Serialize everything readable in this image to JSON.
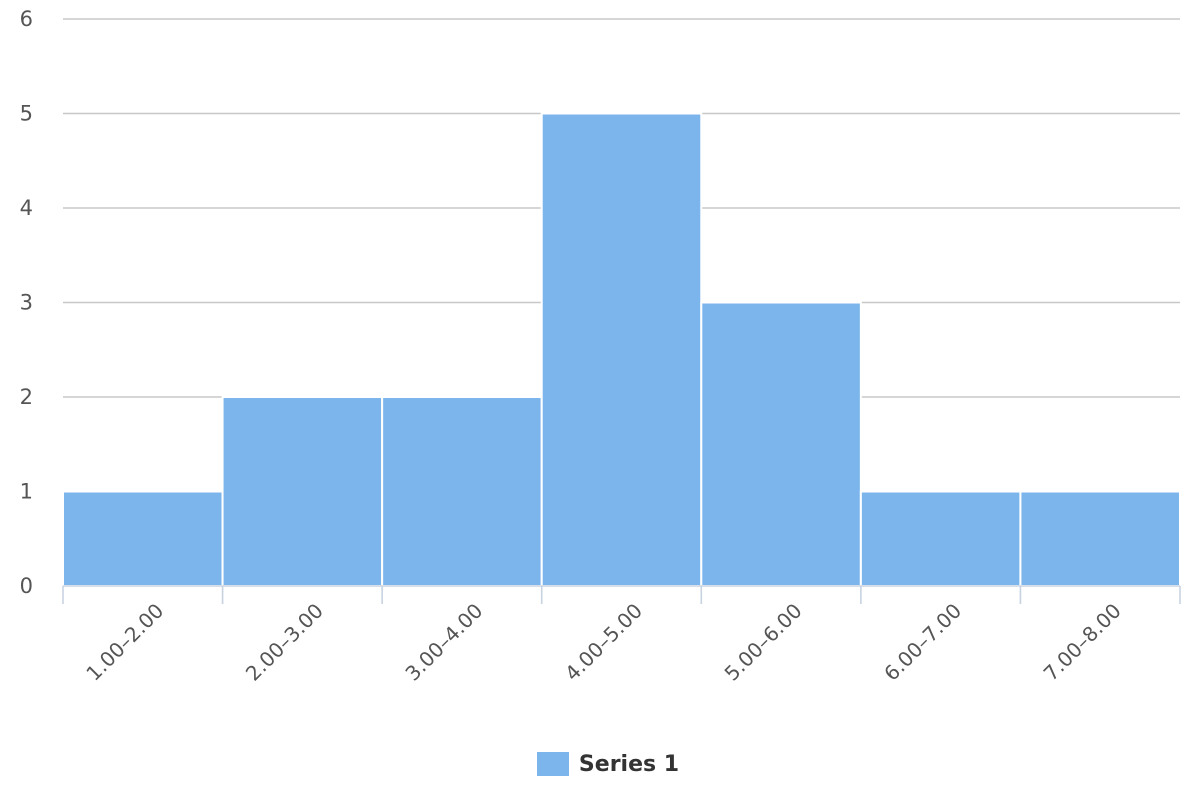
{
  "chart_data": {
    "type": "bar",
    "categories": [
      "1.00–2.00",
      "2.00–3.00",
      "3.00–4.00",
      "4.00–5.00",
      "5.00–6.00",
      "6.00–7.00",
      "7.00–8.00"
    ],
    "series": [
      {
        "name": "Series 1",
        "values": [
          1,
          2,
          2,
          5,
          3,
          1,
          1
        ],
        "color": "#7cb5ec"
      }
    ],
    "ylim": [
      0,
      6
    ],
    "yticks": [
      0,
      1,
      2,
      3,
      4,
      5,
      6
    ],
    "grid": true,
    "legend_position": "bottom-center",
    "title": "",
    "xlabel": "",
    "ylabel": ""
  }
}
